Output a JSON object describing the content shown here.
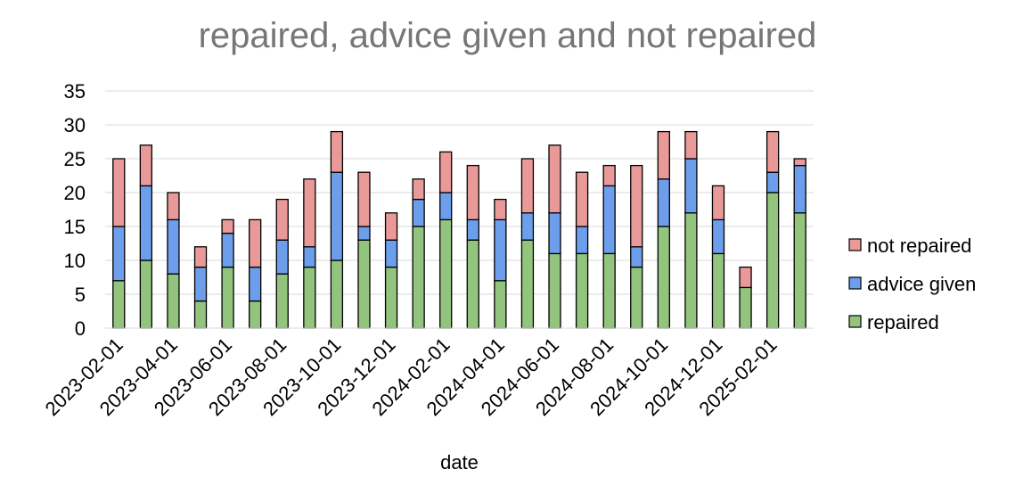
{
  "chart_data": {
    "type": "bar",
    "stacked": true,
    "title": "repaired, advice given and not repaired",
    "xlabel": "date",
    "ylabel": "",
    "ylim": [
      0,
      35
    ],
    "yticks": [
      0,
      5,
      10,
      15,
      20,
      25,
      30,
      35
    ],
    "grid": true,
    "legend_position": "right",
    "categories": [
      "2023-02-01",
      "2023-03-01",
      "2023-04-01",
      "2023-05-01",
      "2023-06-01",
      "2023-07-01",
      "2023-08-01",
      "2023-09-01",
      "2023-10-01",
      "2023-11-01",
      "2023-12-01",
      "2024-01-01",
      "2024-02-01",
      "2024-03-01",
      "2024-04-01",
      "2024-05-01",
      "2024-06-01",
      "2024-07-01",
      "2024-08-01",
      "2024-09-01",
      "2024-10-01",
      "2024-11-01",
      "2024-12-01",
      "2025-01-01",
      "2025-02-01",
      "2025-03-01"
    ],
    "tick_labels": [
      "2023-02-01",
      "2023-04-01",
      "2023-06-01",
      "2023-08-01",
      "2023-10-01",
      "2023-12-01",
      "2024-02-01",
      "2024-04-01",
      "2024-06-01",
      "2024-08-01",
      "2024-10-01",
      "2024-12-01",
      "2025-02-01"
    ],
    "series": [
      {
        "name": "repaired",
        "color": "#93c47d",
        "values": [
          7,
          10,
          8,
          4,
          9,
          4,
          8,
          9,
          10,
          13,
          9,
          15,
          16,
          13,
          7,
          13,
          11,
          11,
          11,
          9,
          15,
          17,
          11,
          6,
          20,
          17
        ]
      },
      {
        "name": "advice given",
        "color": "#6d9eeb",
        "values": [
          8,
          11,
          8,
          5,
          5,
          5,
          5,
          3,
          13,
          2,
          4,
          4,
          4,
          3,
          9,
          4,
          6,
          4,
          10,
          3,
          7,
          8,
          5,
          0,
          3,
          7
        ]
      },
      {
        "name": "not repaired",
        "color": "#ea9999",
        "values": [
          10,
          6,
          4,
          3,
          2,
          7,
          6,
          10,
          6,
          8,
          4,
          3,
          6,
          8,
          3,
          8,
          10,
          8,
          3,
          12,
          7,
          4,
          5,
          3,
          6,
          1
        ]
      }
    ],
    "legend_order": [
      "not repaired",
      "advice given",
      "repaired"
    ]
  }
}
